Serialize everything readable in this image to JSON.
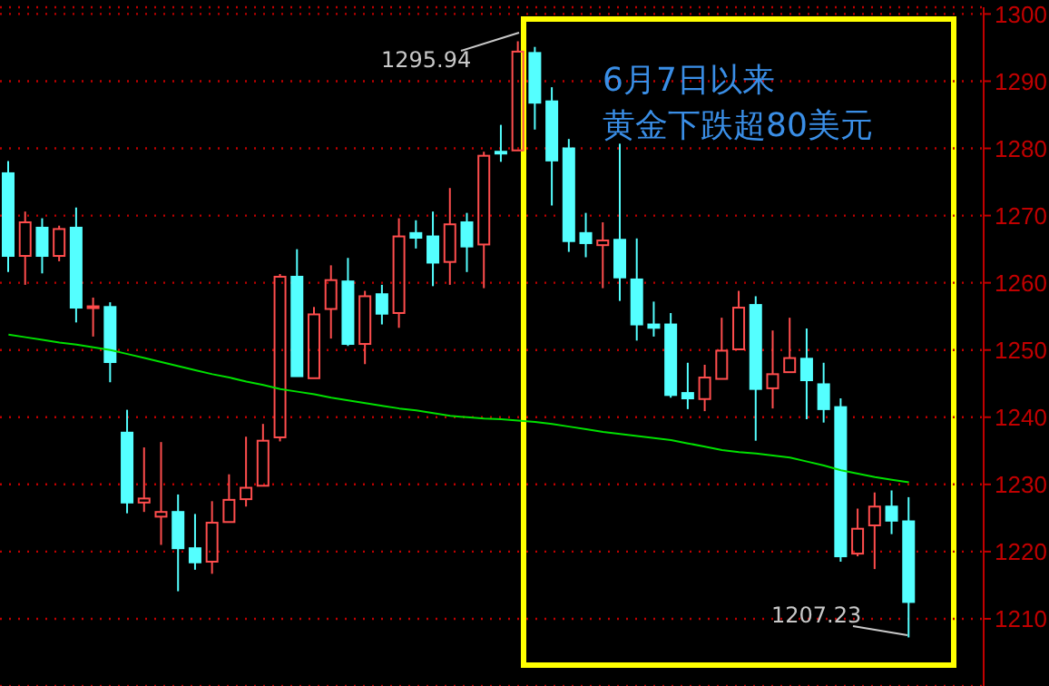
{
  "chart_data": {
    "type": "candlestick",
    "categories": [
      null,
      null,
      null,
      null,
      null,
      null,
      null,
      null,
      null,
      null,
      null,
      null,
      null,
      null,
      null,
      null,
      null,
      null,
      null,
      null,
      null,
      null,
      null,
      null,
      null,
      null,
      null,
      null,
      null,
      null,
      null,
      null,
      null,
      null,
      null,
      null,
      null,
      null,
      null,
      null,
      null,
      null,
      null,
      null,
      null,
      null,
      null,
      null,
      null,
      null,
      null,
      null,
      null,
      null
    ],
    "ohlc": [
      [
        1276.3,
        1278.1,
        1261.6,
        1264.0
      ],
      [
        1264.0,
        1270.6,
        1259.7,
        1269.0
      ],
      [
        1268.2,
        1269.6,
        1261.4,
        1264.0
      ],
      [
        1264.0,
        1268.5,
        1263.2,
        1268.0
      ],
      [
        1268.2,
        1271.2,
        1254.1,
        1256.3
      ],
      [
        1256.3,
        1257.8,
        1252.0,
        1256.5
      ],
      [
        1256.4,
        1257.1,
        1245.2,
        1248.2
      ],
      [
        1237.7,
        1241.1,
        1225.7,
        1227.3
      ],
      [
        1227.3,
        1235.5,
        1225.9,
        1227.9
      ],
      [
        1225.2,
        1236.3,
        1221.0,
        1225.9
      ],
      [
        1225.9,
        1228.5,
        1214.1,
        1220.5
      ],
      [
        1220.5,
        1225.6,
        1217.3,
        1218.4
      ],
      [
        1218.5,
        1227.5,
        1216.7,
        1224.3
      ],
      [
        1224.4,
        1231.5,
        1224.4,
        1227.7
      ],
      [
        1227.8,
        1237.1,
        1226.7,
        1229.5
      ],
      [
        1229.8,
        1239.0,
        1229.8,
        1236.5
      ],
      [
        1237.0,
        1261.3,
        1236.4,
        1260.9
      ],
      [
        1260.9,
        1265.0,
        1246.1,
        1246.1
      ],
      [
        1245.8,
        1256.4,
        1245.8,
        1255.3
      ],
      [
        1256.1,
        1262.6,
        1251.7,
        1260.4
      ],
      [
        1260.2,
        1263.7,
        1250.6,
        1250.9
      ],
      [
        1250.9,
        1258.8,
        1247.9,
        1258.0
      ],
      [
        1258.3,
        1259.7,
        1253.8,
        1255.4
      ],
      [
        1255.5,
        1269.6,
        1253.3,
        1266.9
      ],
      [
        1267.4,
        1269.3,
        1265.1,
        1266.7
      ],
      [
        1266.9,
        1270.6,
        1259.5,
        1263.0
      ],
      [
        1263.1,
        1274.1,
        1259.7,
        1268.7
      ],
      [
        1269.0,
        1270.4,
        1261.6,
        1265.4
      ],
      [
        1265.7,
        1279.5,
        1259.2,
        1278.9
      ],
      [
        1279.5,
        1283.5,
        1278.0,
        1279.4
      ],
      [
        1279.7,
        1295.94,
        1279.7,
        1294.4
      ],
      [
        1294.2,
        1295.1,
        1282.8,
        1286.8
      ],
      [
        1287.0,
        1289.1,
        1271.5,
        1278.2
      ],
      [
        1280.0,
        1281.4,
        1264.6,
        1266.2
      ],
      [
        1267.4,
        1270.4,
        1263.8,
        1265.9
      ],
      [
        1265.6,
        1269.0,
        1259.2,
        1266.3
      ],
      [
        1266.4,
        1280.7,
        1257.3,
        1260.8
      ],
      [
        1260.5,
        1266.6,
        1251.4,
        1253.8
      ],
      [
        1253.8,
        1257.2,
        1252.0,
        1253.3
      ],
      [
        1253.8,
        1255.5,
        1242.9,
        1243.3
      ],
      [
        1243.6,
        1248.1,
        1241.2,
        1242.8
      ],
      [
        1242.7,
        1247.8,
        1240.9,
        1245.9
      ],
      [
        1245.7,
        1254.8,
        1245.7,
        1249.9
      ],
      [
        1250.1,
        1258.8,
        1250.1,
        1256.3
      ],
      [
        1256.7,
        1258.0,
        1236.5,
        1244.2
      ],
      [
        1244.3,
        1252.9,
        1241.3,
        1246.4
      ],
      [
        1246.7,
        1254.8,
        1246.7,
        1248.8
      ],
      [
        1248.7,
        1253.2,
        1239.7,
        1245.5
      ],
      [
        1244.9,
        1248.1,
        1239.2,
        1241.2
      ],
      [
        1241.5,
        1242.8,
        1218.5,
        1219.3
      ],
      [
        1219.7,
        1226.4,
        1219.3,
        1223.4
      ],
      [
        1223.9,
        1228.8,
        1217.4,
        1226.7
      ],
      [
        1226.7,
        1229.1,
        1222.6,
        1224.6
      ],
      [
        1224.5,
        1228.1,
        1207.23,
        1212.5
      ]
    ],
    "colors": [
      "#54ffff",
      "#ff4d4d",
      "#54ffff",
      "#ff4d4d",
      "#54ffff",
      "#ff4d4d",
      "#54ffff",
      "#54ffff",
      "#ff4d4d",
      "#ff4d4d",
      "#54ffff",
      "#54ffff",
      "#ff4d4d",
      "#ff4d4d",
      "#ff4d4d",
      "#ff4d4d",
      "#ff4d4d",
      "#54ffff",
      "#ff4d4d",
      "#ff4d4d",
      "#54ffff",
      "#ff4d4d",
      "#54ffff",
      "#ff4d4d",
      "#54ffff",
      "#54ffff",
      "#ff4d4d",
      "#54ffff",
      "#ff4d4d",
      "#54ffff",
      "#ff4d4d",
      "#54ffff",
      "#54ffff",
      "#54ffff",
      "#54ffff",
      "#ff4d4d",
      "#54ffff",
      "#54ffff",
      "#54ffff",
      "#54ffff",
      "#54ffff",
      "#ff4d4d",
      "#ff4d4d",
      "#ff4d4d",
      "#54ffff",
      "#ff4d4d",
      "#ff4d4d",
      "#54ffff",
      "#54ffff",
      "#54ffff",
      "#ff4d4d",
      "#ff4d4d",
      "#54ffff",
      "#54ffff"
    ],
    "series": [
      {
        "type": "line",
        "color": "#00e000",
        "values": [
          1252.3,
          1251.9,
          1251.5,
          1251.1,
          1250.8,
          1250.4,
          1250.0,
          1249.4,
          1248.8,
          1248.2,
          1247.6,
          1247.0,
          1246.4,
          1245.9,
          1245.3,
          1244.8,
          1244.2,
          1243.8,
          1243.4,
          1242.9,
          1242.5,
          1242.1,
          1241.7,
          1241.3,
          1241.0,
          1240.6,
          1240.2,
          1240.0,
          1239.8,
          1239.7,
          1239.5,
          1239.3,
          1239.0,
          1238.6,
          1238.2,
          1237.8,
          1237.5,
          1237.2,
          1236.9,
          1236.6,
          1236.1,
          1235.6,
          1235.1,
          1234.8,
          1234.6,
          1234.3,
          1234.0,
          1233.4,
          1232.8,
          1232.1,
          1231.6,
          1231.1,
          1230.7,
          1230.3
        ]
      }
    ],
    "ylim": [
      1200,
      1301
    ],
    "yticks": [
      1210,
      1220,
      1230,
      1240,
      1250,
      1260,
      1270,
      1280,
      1290,
      1300
    ],
    "grid": "y",
    "tick_labels": "y",
    "annotations": [
      "1295.94",
      "1207.23",
      "6月7日以来",
      "黄金下跌超80美元"
    ]
  }
}
